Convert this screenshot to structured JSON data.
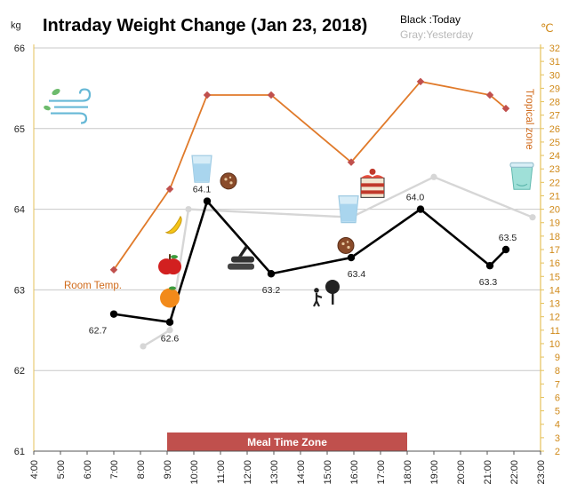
{
  "chart_data": {
    "type": "line",
    "title": "Intraday Weight Change (Jan 23, 2018)",
    "legend": {
      "today": "Black :Today",
      "yesterday": "Gray:Yesterday"
    },
    "y_left": {
      "unit": "kg",
      "range": [
        61,
        66
      ],
      "ticks": [
        "61",
        "62",
        "63",
        "64",
        "65",
        "66"
      ]
    },
    "y_right": {
      "unit": "℃",
      "range": [
        2,
        32
      ],
      "ticks": [
        "2",
        "3",
        "4",
        "5",
        "6",
        "7",
        "8",
        "9",
        "10",
        "11",
        "12",
        "13",
        "14",
        "15",
        "16",
        "17",
        "18",
        "19",
        "20",
        "21",
        "22",
        "23",
        "24",
        "25",
        "26",
        "27",
        "28",
        "29",
        "30",
        "31",
        "32"
      ]
    },
    "x_axis": {
      "range_hours": [
        4,
        23
      ],
      "ticks": [
        "4:00",
        "5:00",
        "6:00",
        "7:00",
        "8:00",
        "9:00",
        "10:00",
        "11:00",
        "12:00",
        "13:00",
        "14:00",
        "15:00",
        "16:00",
        "17:00",
        "18:00",
        "19:00",
        "20:00",
        "21:00",
        "22:00",
        "23:00"
      ]
    },
    "series": [
      {
        "name": "Today",
        "color": "#000000",
        "axis": "left",
        "x": [
          7.0,
          9.1,
          10.5,
          12.9,
          15.9,
          18.5,
          21.1,
          21.7
        ],
        "y": [
          62.7,
          62.6,
          64.1,
          63.2,
          63.4,
          64.0,
          63.3,
          63.5
        ],
        "labels": [
          "62.7",
          "62.6",
          "64.1",
          "63.2",
          "63.4",
          "64.0",
          "63.3",
          "63.5"
        ]
      },
      {
        "color": "#d6d6d6",
        "axis": "left",
        "x": [
          8.1,
          9.1,
          9.8,
          15.9,
          19.0,
          22.7
        ],
        "y": [
          62.3,
          62.5,
          64.0,
          63.9,
          64.4,
          63.9
        ]
      },
      {
        "color": "#e07a2a",
        "axis": "right",
        "x": [
          7.0,
          9.1,
          10.5,
          12.9,
          15.9,
          18.5,
          21.1,
          21.7
        ],
        "y": [
          15.5,
          21.5,
          28.5,
          28.5,
          23.5,
          29.5,
          28.5,
          27.5
        ]
      }
    ],
    "annotations": {
      "room_temp": "Room Temp.",
      "tropical_zone": "Tropical zone",
      "meal_time_zone": {
        "label": "Meal Time Zone",
        "from": 9.0,
        "to": 18.0,
        "color": "#c0504d"
      }
    },
    "icons": [
      {
        "name": "wind-icon",
        "x": 5.3,
        "y": 65.3
      },
      {
        "name": "orange-icon",
        "x": 9.1,
        "y": 62.9
      },
      {
        "name": "apple-icon",
        "x": 9.1,
        "y": 63.3
      },
      {
        "name": "banana-icon",
        "x": 9.3,
        "y": 63.8
      },
      {
        "name": "water-glass-icon",
        "x": 10.3,
        "y": 64.5
      },
      {
        "name": "cookie-icon",
        "x": 11.3,
        "y": 64.35
      },
      {
        "name": "firewood-icon",
        "x": 11.8,
        "y": 63.35
      },
      {
        "name": "gardener-icon",
        "x": 15.0,
        "y": 62.95
      },
      {
        "name": "water-glass-icon",
        "x": 15.8,
        "y": 64.0
      },
      {
        "name": "cookie-icon",
        "x": 15.7,
        "y": 63.55
      },
      {
        "name": "cake-icon",
        "x": 16.7,
        "y": 64.3
      },
      {
        "name": "yogurt-cup-icon",
        "x": 22.3,
        "y": 64.4
      }
    ],
    "grid": "horizontal"
  }
}
